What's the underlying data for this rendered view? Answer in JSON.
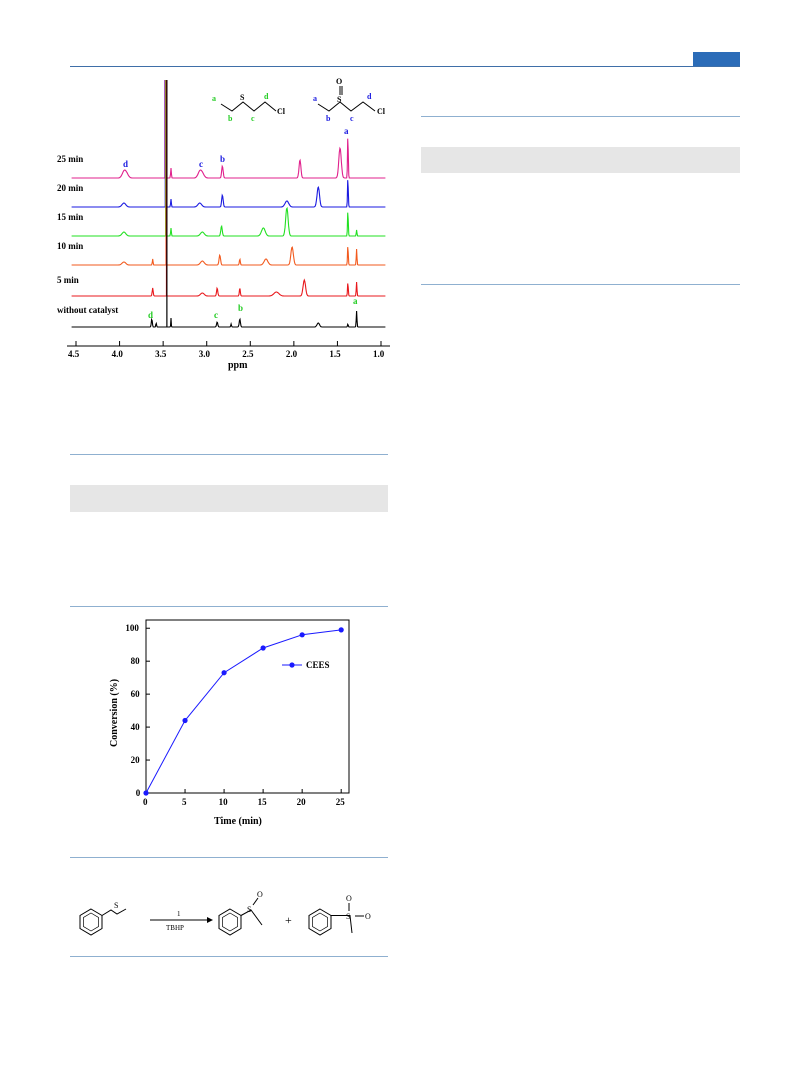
{
  "nmr_figure": {
    "xlabel": "ppm",
    "x_ticks": [
      "4.5",
      "4.0",
      "3.5",
      "3.0",
      "2.5",
      "2.0",
      "1.5",
      "1.0"
    ],
    "traces": [
      {
        "label": "25 min",
        "color": "#e0208c"
      },
      {
        "label": "20 min",
        "color": "#1a1ae0"
      },
      {
        "label": "15 min",
        "color": "#22e022"
      },
      {
        "label": "10 min",
        "color": "#f25a1e"
      },
      {
        "label": "5 min",
        "color": "#e8181c"
      },
      {
        "label": "without catalyst",
        "color": "#000000"
      }
    ],
    "peak_labels": {
      "top": {
        "d": "d",
        "c": "c",
        "b": "b",
        "a": "a"
      },
      "bottom": {
        "d": "d",
        "c": "c",
        "b": "b",
        "a": "a"
      }
    },
    "structure_cees": {
      "a": "a",
      "b": "b",
      "c": "c",
      "d": "d",
      "S": "S",
      "Cl": "Cl"
    },
    "structure_ceeso": {
      "a": "a",
      "b": "b",
      "c": "c",
      "d": "d",
      "S": "S",
      "O": "O",
      "Cl": "Cl"
    }
  },
  "chart_data": {
    "type": "line",
    "title": "",
    "xlabel": "Time (min)",
    "ylabel": "Conversion (%)",
    "xlim": [
      0,
      26
    ],
    "ylim": [
      0,
      105
    ],
    "x_ticks": [
      "0",
      "5",
      "10",
      "15",
      "20",
      "25"
    ],
    "y_ticks": [
      "0",
      "20",
      "40",
      "60",
      "80",
      "100"
    ],
    "legend_position": "top-right",
    "series": [
      {
        "name": "CEES",
        "color": "#1a1aff",
        "x": [
          0,
          5,
          10,
          15,
          20,
          25
        ],
        "y": [
          0,
          44,
          73,
          88,
          96,
          99
        ]
      }
    ]
  },
  "scheme": {
    "arrow_top": "1",
    "arrow_bottom": "TBHP",
    "plus": "+",
    "atoms": {
      "S": "S",
      "O": "O"
    }
  }
}
